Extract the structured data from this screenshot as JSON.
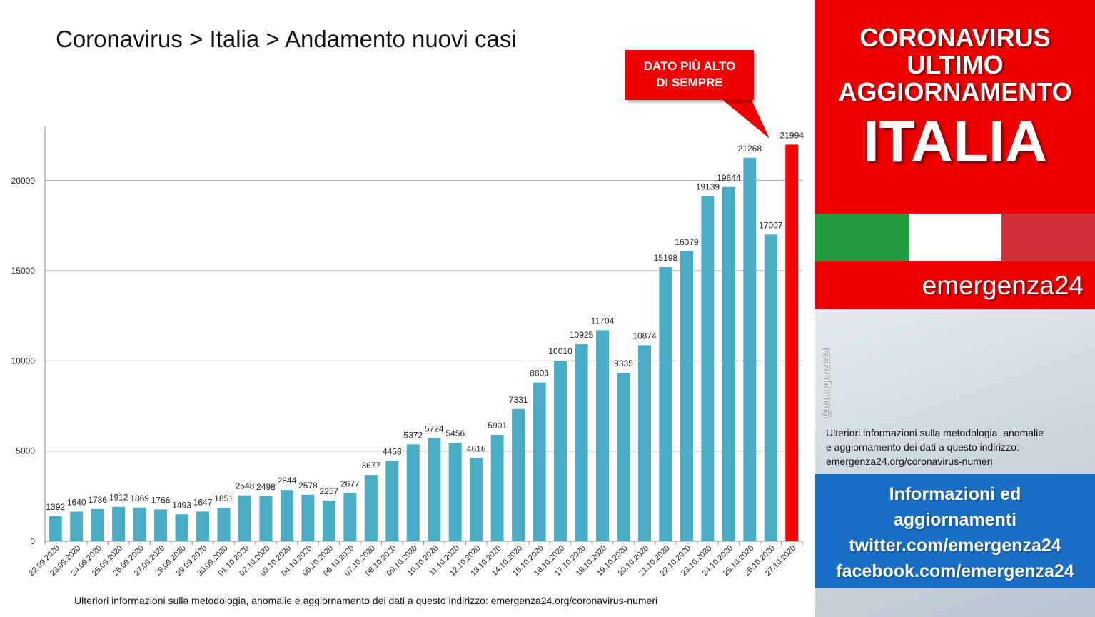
{
  "title": "Coronavirus > Italia > Andamento nuovi casi",
  "callout": {
    "line1": "DATO PIÙ ALTO",
    "line2": "DI SEMPRE"
  },
  "footer_note": "Ulteriori informazioni sulla metodologia, anomalie e aggiornamento dei dati a questo indirizzo: emergenza24.org/coronavirus-numeri",
  "header": {
    "line1": "CORONAVIRUS",
    "line2": "ULTIMO",
    "line3": "AGGIORNAMENTO",
    "country": "ITALIA"
  },
  "brand": "emergenza24",
  "handle": "@emergenza24",
  "info_text": {
    "line1": "Ulteriori informazioni sulla metodologia, anomalie",
    "line2": "e aggiornamento dei dati a questo indirizzo:",
    "line3": "emergenza24.org/coronavirus-numeri"
  },
  "social": {
    "line1": "Informazioni ed",
    "line2": "aggiornamenti",
    "line3": "twitter.com/emergenza24",
    "line4": "facebook.com/emergenza24"
  },
  "colors": {
    "bar": "#4bacc6",
    "highlight_bar": "#ff0000",
    "red_panel": "#ee0000",
    "flag_green": "#229a3e",
    "flag_white": "#ffffff",
    "flag_red": "#d32f3a",
    "social_blue": "#1a6fc4"
  },
  "chart_data": {
    "type": "bar",
    "categories": [
      "22.09.2020",
      "23.09.2020",
      "24.09.2020",
      "25.09.2020",
      "26.09.2020",
      "27.09.2020",
      "28.09.2020",
      "29.09.2020",
      "30.09.2020",
      "01.10.2020",
      "02.10.2020",
      "03.10.2020",
      "04.10.2020",
      "05.10.2020",
      "06.10.2020",
      "07.10.2020",
      "08.10.2020",
      "09.10.2020",
      "10.10.2020",
      "11.10.2020",
      "12.10.2020",
      "13.10.2020",
      "14.10.2020",
      "15.10.2020",
      "16.10.2020",
      "17.10.2020",
      "18.10.2020",
      "19.10.2020",
      "20.10.2020",
      "21.10.2020",
      "22.10.2020",
      "23.10.2020",
      "24.10.2020",
      "25.10.2020",
      "26.10.2020",
      "27.10.2020"
    ],
    "values": [
      1392,
      1640,
      1786,
      1912,
      1869,
      1766,
      1493,
      1647,
      1851,
      2548,
      2498,
      2844,
      2578,
      2257,
      2677,
      3677,
      4458,
      5372,
      5724,
      5456,
      4616,
      5901,
      7331,
      8803,
      10010,
      10925,
      11704,
      9335,
      10874,
      15198,
      16079,
      19139,
      19644,
      21268,
      17007,
      21994
    ],
    "highlight_index": 35,
    "ylim": [
      0,
      23000
    ],
    "yticks": [
      0,
      5000,
      10000,
      15000,
      20000
    ],
    "grid": true,
    "legend": "none"
  }
}
